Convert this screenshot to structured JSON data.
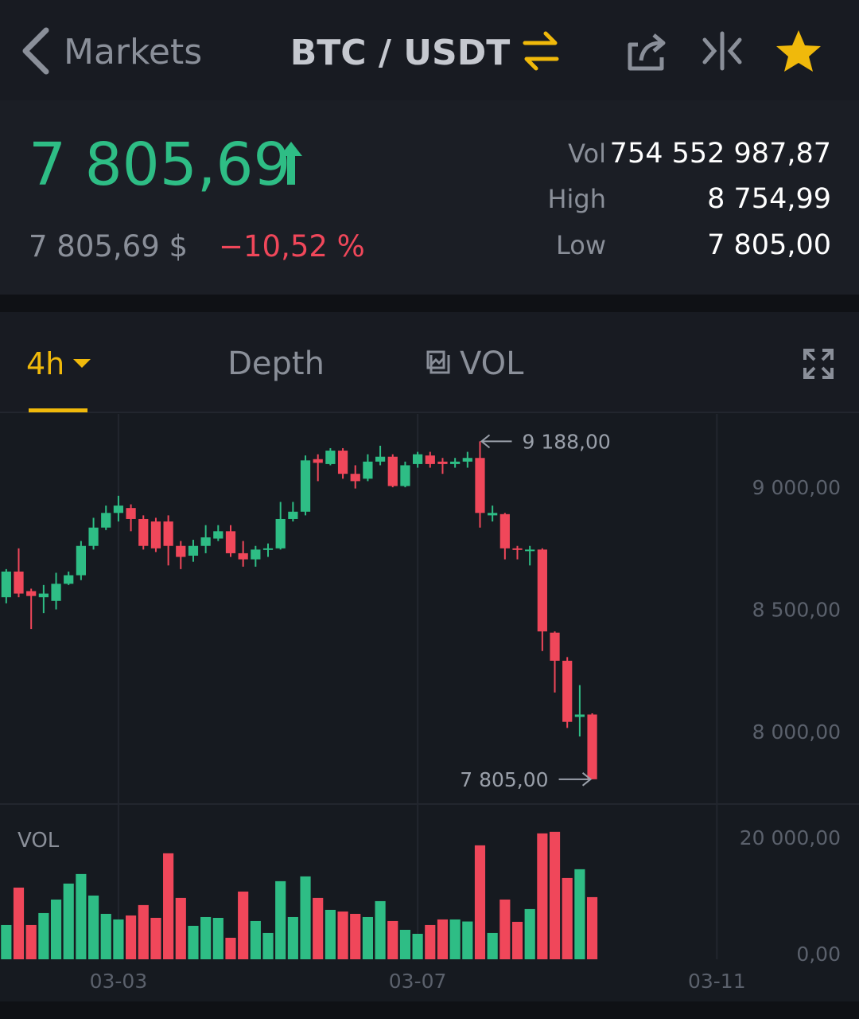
{
  "header": {
    "back": "Markets",
    "pair": "BTC / USDT"
  },
  "ticker": {
    "price": "7 805,69",
    "fiat": "7 805,69 $",
    "change": "−10,52 %",
    "stats": [
      {
        "label": "Vol",
        "value": "754 552 987,87"
      },
      {
        "label": "High",
        "value": "8 754,99"
      },
      {
        "label": "Low",
        "value": "7 805,00"
      }
    ]
  },
  "tabs": [
    "4h",
    "Depth",
    "VOL"
  ],
  "chart_data": [
    {
      "type": "candlestick",
      "up_color": "#2ebd85",
      "down_color": "#f0475a",
      "categories": [
        null,
        null,
        null,
        null,
        null,
        null,
        null,
        null,
        null,
        null,
        null,
        null,
        null,
        null,
        null,
        null,
        null,
        null,
        null,
        null,
        null,
        null,
        null,
        null,
        null,
        null,
        null,
        null,
        null,
        null,
        null,
        null,
        null,
        null,
        null,
        null,
        null,
        null,
        null,
        null,
        null,
        null,
        null,
        null,
        null,
        null,
        null,
        null
      ],
      "open": [
        8550,
        8655,
        8575,
        8550,
        8535,
        8605,
        8640,
        8760,
        8835,
        8895,
        8915,
        8870,
        8860,
        8860,
        8760,
        8720,
        8760,
        8790,
        8820,
        8730,
        8705,
        8745,
        8750,
        8870,
        8900,
        9115,
        9095,
        9150,
        9055,
        9035,
        9105,
        9125,
        9005,
        9095,
        9130,
        9105,
        9095,
        9105,
        9120,
        8885,
        8890,
        8750,
        8740,
        8745,
        8405,
        8290,
        8060,
        8070
      ],
      "high": [
        8665,
        8750,
        8585,
        8600,
        8650,
        8655,
        8780,
        8875,
        8925,
        8965,
        8930,
        8885,
        8875,
        8885,
        8780,
        8785,
        8845,
        8845,
        8845,
        8780,
        8760,
        8770,
        8940,
        8940,
        9130,
        9135,
        9160,
        9160,
        9090,
        9135,
        9170,
        9135,
        9105,
        9145,
        9145,
        9120,
        9120,
        9145,
        9188,
        8925,
        8895,
        8760,
        8760,
        8750,
        8410,
        8305,
        8190,
        8075
      ],
      "low": [
        8525,
        8550,
        8420,
        8485,
        8500,
        8600,
        8620,
        8745,
        8825,
        8860,
        8820,
        8745,
        8735,
        8680,
        8665,
        8695,
        8730,
        8780,
        8715,
        8675,
        8675,
        8715,
        8745,
        8860,
        8885,
        9025,
        9090,
        9035,
        8995,
        9025,
        9090,
        9000,
        9000,
        9080,
        9080,
        9055,
        9080,
        9080,
        8835,
        8860,
        8705,
        8705,
        8680,
        8330,
        8160,
        8015,
        7980,
        7805
      ],
      "close": [
        8655,
        8565,
        8555,
        8565,
        8605,
        8640,
        8760,
        8835,
        8895,
        8925,
        8870,
        8760,
        8750,
        8760,
        8715,
        8760,
        8795,
        8820,
        8730,
        8705,
        8745,
        8750,
        8870,
        8900,
        9110,
        9100,
        9150,
        9055,
        9025,
        9105,
        9125,
        9005,
        9090,
        9135,
        9095,
        9095,
        9105,
        9120,
        8895,
        8895,
        8750,
        8745,
        8745,
        8410,
        8290,
        8040,
        8070,
        7805
      ],
      "xlim": [
        -0.5,
        68.4
      ],
      "ylim": [
        7710,
        9300
      ],
      "yticks": [
        {
          "value": 9000,
          "label": "9 000,00"
        },
        {
          "value": 8500,
          "label": "8 500,00"
        },
        {
          "value": 8000,
          "label": "8 000,00"
        }
      ],
      "annotations": [
        {
          "value": 9188,
          "label": "9 188,00"
        },
        {
          "value": 7805,
          "label": "7 805,00"
        }
      ]
    },
    {
      "type": "bar",
      "title": "VOL",
      "categories": [
        null,
        null,
        null,
        null,
        null,
        null,
        null,
        null,
        null,
        null,
        null,
        null,
        null,
        null,
        null,
        null,
        null,
        null,
        null,
        null,
        null,
        null,
        null,
        null,
        null,
        null,
        null,
        null,
        null,
        null,
        null,
        null,
        null,
        null,
        null,
        null,
        null,
        null,
        null,
        null,
        null,
        null,
        null,
        null,
        null,
        null,
        null,
        null
      ],
      "values": [
        5620,
        11760,
        5620,
        7580,
        9800,
        12420,
        13985,
        10455,
        7450,
        6535,
        7190,
        8890,
        6800,
        17385,
        10065,
        5490,
        6925,
        6795,
        3530,
        11110,
        6275,
        4315,
        12810,
        6925,
        13595,
        10065,
        8105,
        7840,
        7450,
        6925,
        9540,
        6275,
        4835,
        4180,
        5620,
        6535,
        6535,
        6200,
        18690,
        4315,
        9800,
        6145,
        8235,
        20650,
        20910,
        13330,
        14770,
        10195
      ],
      "xlim": [
        -0.5,
        68.4
      ],
      "xticks": [
        {
          "value": 9,
          "label": "03-03"
        },
        {
          "value": 33,
          "label": "03-07"
        },
        {
          "value": 57,
          "label": "03-11"
        }
      ],
      "ylim": [
        0,
        25200
      ],
      "yticks": [
        {
          "value": 20000,
          "label": "20 000,00"
        },
        {
          "value": 0,
          "label": "0,00"
        }
      ]
    }
  ]
}
